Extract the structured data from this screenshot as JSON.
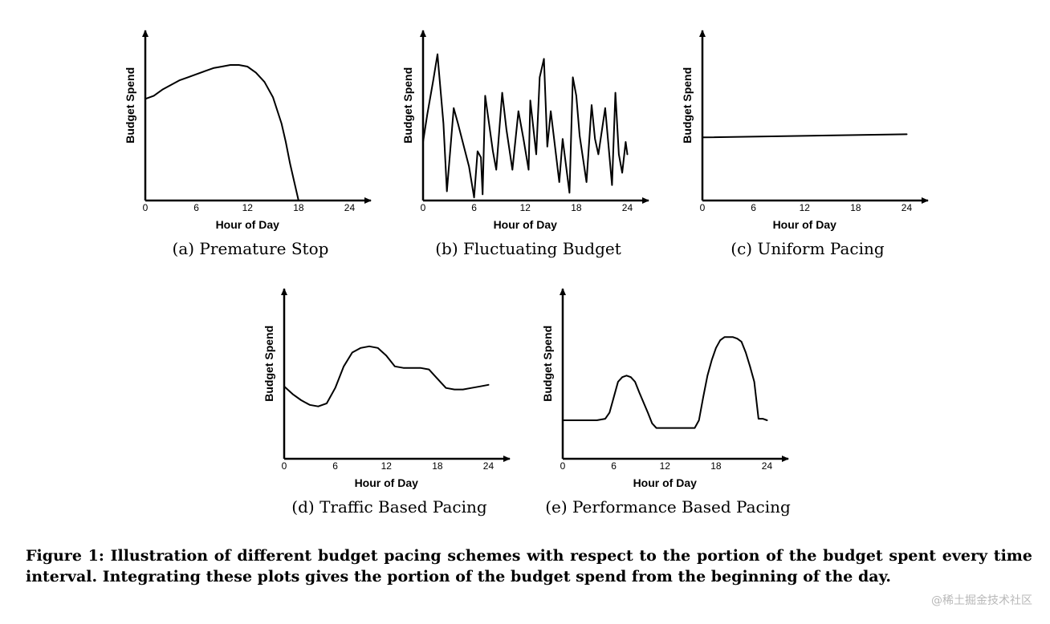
{
  "chart_data": [
    {
      "type": "line",
      "subcaption": "(a) Premature Stop",
      "xlabel": "Hour of Day",
      "ylabel": "Budget Spend",
      "xticks": [
        "0",
        "6",
        "12",
        "18",
        "24"
      ],
      "xlim": [
        0,
        26.5
      ],
      "ylim": [
        0,
        1
      ],
      "series": [
        {
          "x": [
            0,
            1,
            2,
            3,
            4,
            5,
            6,
            7,
            8,
            9,
            10,
            11,
            12,
            13,
            14,
            15,
            16,
            16.5,
            17,
            17.5,
            18
          ],
          "y": [
            0.66,
            0.68,
            0.72,
            0.75,
            0.78,
            0.8,
            0.82,
            0.84,
            0.86,
            0.87,
            0.88,
            0.88,
            0.87,
            0.83,
            0.77,
            0.67,
            0.5,
            0.38,
            0.24,
            0.12,
            0
          ]
        }
      ]
    },
    {
      "type": "line",
      "subcaption": "(b) Fluctuating Budget",
      "xlabel": "Hour of Day",
      "ylabel": "Budget Spend",
      "xticks": [
        "0",
        "6",
        "12",
        "18",
        "24"
      ],
      "xlim": [
        0,
        26.5
      ],
      "ylim": [
        0,
        1
      ],
      "series": [
        {
          "x": [
            0,
            0.5,
            1.2,
            1.7,
            1.8,
            2.4,
            2.8,
            3.6,
            4.1,
            5.4,
            6.0,
            6.4,
            6.8,
            7.0,
            7.3,
            8.2,
            8.6,
            9.3,
            9.8,
            10.5,
            11.2,
            11.8,
            12.4,
            12.6,
            13.3,
            13.7,
            14.2,
            14.6,
            15.0,
            16.0,
            16.4,
            17.2,
            17.6,
            18.0,
            18.4,
            19.2,
            19.8,
            20.2,
            20.6,
            21.4,
            22.2,
            22.6,
            23.0,
            23.4,
            23.8,
            24.0
          ],
          "y": [
            0.38,
            0.56,
            0.78,
            0.95,
            0.88,
            0.5,
            0.06,
            0.6,
            0.5,
            0.22,
            0.02,
            0.32,
            0.28,
            0.04,
            0.68,
            0.32,
            0.2,
            0.7,
            0.46,
            0.2,
            0.58,
            0.4,
            0.2,
            0.65,
            0.3,
            0.8,
            0.92,
            0.35,
            0.58,
            0.12,
            0.4,
            0.05,
            0.8,
            0.68,
            0.42,
            0.12,
            0.62,
            0.4,
            0.3,
            0.6,
            0.1,
            0.7,
            0.3,
            0.18,
            0.38,
            0.3
          ]
        }
      ]
    },
    {
      "type": "line",
      "subcaption": "(c) Uniform Pacing",
      "xlabel": "Hour of Day",
      "ylabel": "Budget Spend",
      "xticks": [
        "0",
        "6",
        "12",
        "18",
        "24"
      ],
      "xlim": [
        0,
        26.5
      ],
      "ylim": [
        0,
        1
      ],
      "series": [
        {
          "x": [
            0,
            24
          ],
          "y": [
            0.41,
            0.43
          ]
        }
      ]
    },
    {
      "type": "line",
      "subcaption": "(d) Traffic Based Pacing",
      "xlabel": "Hour of Day",
      "ylabel": "Budget Spend",
      "xticks": [
        "0",
        "6",
        "12",
        "18",
        "24"
      ],
      "xlim": [
        0,
        26.5
      ],
      "ylim": [
        0,
        1
      ],
      "series": [
        {
          "x": [
            0,
            1,
            2,
            3,
            4,
            5,
            6,
            7,
            8,
            9,
            10,
            11,
            12,
            13,
            14,
            15,
            16,
            17,
            18,
            19,
            20,
            21,
            22,
            23,
            24
          ],
          "y": [
            0.47,
            0.42,
            0.38,
            0.35,
            0.34,
            0.36,
            0.46,
            0.6,
            0.69,
            0.72,
            0.73,
            0.72,
            0.67,
            0.6,
            0.59,
            0.59,
            0.59,
            0.58,
            0.52,
            0.46,
            0.45,
            0.45,
            0.46,
            0.47,
            0.48
          ]
        }
      ]
    },
    {
      "type": "line",
      "subcaption": "(e) Performance Based Pacing",
      "xlabel": "Hour of Day",
      "ylabel": "Budget Spend",
      "xticks": [
        "0",
        "6",
        "12",
        "18",
        "24"
      ],
      "xlim": [
        0,
        26.5
      ],
      "ylim": [
        0,
        1
      ],
      "series": [
        {
          "x": [
            0,
            2,
            4,
            5,
            5.5,
            6,
            6.5,
            7,
            7.5,
            8,
            8.5,
            9,
            10,
            10.5,
            11,
            12,
            13,
            14,
            15,
            15.5,
            16,
            16.5,
            17,
            17.5,
            18,
            18.5,
            19,
            19.5,
            20,
            20.5,
            21,
            21.5,
            22,
            22.5,
            23,
            23.5,
            24
          ],
          "y": [
            0.25,
            0.25,
            0.25,
            0.26,
            0.3,
            0.4,
            0.5,
            0.53,
            0.54,
            0.53,
            0.5,
            0.43,
            0.3,
            0.23,
            0.2,
            0.2,
            0.2,
            0.2,
            0.2,
            0.2,
            0.25,
            0.4,
            0.54,
            0.64,
            0.72,
            0.77,
            0.79,
            0.79,
            0.79,
            0.78,
            0.76,
            0.69,
            0.6,
            0.5,
            0.26,
            0.26,
            0.25
          ]
        }
      ]
    }
  ],
  "caption": "Figure 1: Illustration of different budget pacing schemes with respect to the portion of the budget spent every time interval. Integrating these plots gives the portion of the budget spend from the beginning of the day.",
  "watermark": "@稀土掘金技术社区"
}
